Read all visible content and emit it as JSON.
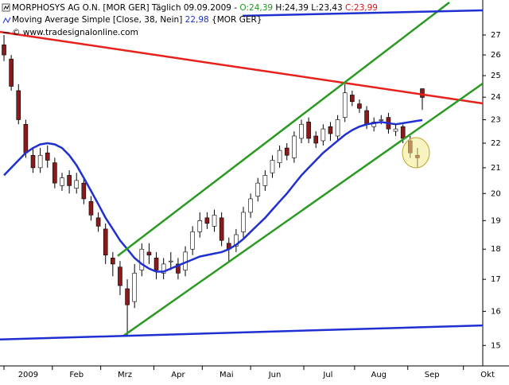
{
  "chart_data": {
    "type": "candlestick",
    "header": {
      "name": "MORPHOSYS AG O.N. [MOR GER]  Täglich 09.09.2009 - ",
      "open": "O:24,39",
      "mid": " H:24,39 L:23,43 ",
      "close": "C:23,99",
      "ma_label": "Moving Average Simple [Close, 38, Nein] ",
      "ma_value": "22,98",
      "ma_tail": " {MOR GER}",
      "source": "© www.tradesignalonline.com"
    },
    "x": [
      0,
      3,
      6,
      9,
      12,
      15,
      18,
      21,
      24,
      27,
      30,
      33,
      36,
      39,
      42,
      45,
      48,
      51,
      54,
      57,
      60,
      63,
      66,
      69,
      72,
      75,
      78,
      81,
      84,
      87,
      90,
      93,
      96,
      99,
      102,
      105,
      108,
      111,
      114,
      117,
      120,
      123,
      126,
      129,
      132,
      135,
      138,
      141,
      144,
      147,
      150,
      153,
      156,
      159,
      162,
      165,
      168,
      171,
      173
    ],
    "open": [
      26.5,
      25.8,
      24.3,
      22.8,
      21.5,
      21.0,
      21.6,
      21.2,
      20.3,
      20.7,
      20.2,
      20.4,
      19.7,
      19.1,
      18.7,
      17.7,
      17.4,
      16.7,
      16.3,
      17.3,
      17.9,
      17.7,
      17.2,
      17.6,
      17.5,
      17.3,
      18.0,
      18.6,
      19.1,
      18.8,
      19.1,
      18.2,
      18.1,
      18.6,
      19.3,
      19.9,
      20.3,
      20.8,
      21.2,
      21.8,
      21.4,
      22.2,
      22.9,
      22.3,
      22.1,
      22.7,
      22.3,
      23.1,
      24.1,
      23.7,
      23.4,
      22.7,
      23.0,
      23.1,
      22.5,
      22.7,
      22.1,
      21.5,
      24.39
    ],
    "high": [
      27.0,
      26.0,
      24.6,
      23.0,
      21.8,
      21.8,
      21.9,
      21.4,
      20.8,
      20.9,
      20.8,
      20.6,
      19.9,
      19.3,
      18.9,
      17.9,
      17.6,
      17.0,
      17.5,
      18.2,
      18.2,
      17.9,
      17.7,
      17.9,
      17.7,
      18.1,
      18.8,
      19.3,
      19.3,
      19.4,
      19.3,
      18.4,
      18.7,
      19.5,
      20.0,
      20.6,
      20.9,
      21.5,
      21.9,
      22.0,
      22.5,
      23.0,
      23.1,
      22.5,
      22.8,
      22.9,
      23.2,
      24.6,
      24.3,
      23.9,
      23.6,
      23.1,
      23.2,
      23.3,
      22.8,
      22.8,
      22.3,
      21.8,
      24.39
    ],
    "low": [
      25.7,
      24.3,
      22.8,
      21.4,
      20.8,
      20.8,
      21.0,
      20.2,
      20.1,
      20.0,
      20.0,
      19.6,
      19.0,
      18.6,
      17.5,
      17.1,
      16.5,
      15.3,
      16.1,
      17.1,
      17.5,
      17.0,
      17.0,
      17.3,
      17.0,
      17.1,
      17.8,
      18.4,
      18.7,
      18.6,
      18.1,
      17.6,
      17.9,
      18.4,
      19.1,
      19.7,
      20.1,
      20.6,
      21.0,
      21.3,
      21.2,
      22.0,
      22.0,
      21.8,
      21.9,
      22.1,
      22.1,
      22.9,
      23.6,
      23.3,
      22.6,
      22.5,
      22.8,
      22.4,
      22.3,
      22.0,
      21.4,
      21.0,
      23.43
    ],
    "close": [
      26.0,
      24.5,
      23.0,
      21.6,
      21.0,
      21.5,
      21.3,
      20.4,
      20.6,
      20.3,
      20.5,
      19.8,
      19.2,
      18.8,
      17.8,
      17.5,
      16.8,
      16.2,
      17.2,
      18.0,
      17.8,
      17.3,
      17.5,
      17.6,
      17.2,
      17.9,
      18.6,
      19.0,
      18.9,
      19.2,
      18.3,
      18.0,
      18.5,
      19.3,
      19.8,
      20.4,
      20.7,
      21.3,
      21.7,
      21.5,
      22.3,
      22.8,
      22.2,
      22.0,
      22.6,
      22.4,
      23.0,
      24.2,
      23.8,
      23.5,
      22.8,
      22.9,
      23.0,
      22.6,
      22.6,
      22.2,
      21.6,
      21.4,
      23.99
    ],
    "up_color": "#ffffff",
    "down_color": "#8b1a1a",
    "ma": {
      "color": "#1f2fd0",
      "values": [
        20.7,
        21.0,
        21.3,
        21.6,
        21.8,
        21.95,
        22.0,
        21.95,
        21.8,
        21.5,
        21.1,
        20.6,
        20.1,
        19.6,
        19.1,
        18.7,
        18.3,
        18.0,
        17.7,
        17.5,
        17.35,
        17.25,
        17.25,
        17.35,
        17.45,
        17.55,
        17.65,
        17.75,
        17.8,
        17.85,
        17.9,
        18.0,
        18.15,
        18.35,
        18.6,
        18.85,
        19.1,
        19.4,
        19.7,
        20.0,
        20.35,
        20.7,
        21.0,
        21.3,
        21.6,
        21.85,
        22.1,
        22.35,
        22.55,
        22.7,
        22.8,
        22.85,
        22.9,
        22.85,
        22.8,
        22.85,
        22.9,
        22.95,
        22.98
      ]
    },
    "trendlines": [
      {
        "color": "#e8201a",
        "x": [
          -1.65,
          198
        ],
        "values": [
          27.16,
          23.72
        ]
      },
      {
        "color": "#2a9a22",
        "x": [
          47,
          184.2
        ],
        "values": [
          17.77,
          28.72
        ]
      },
      {
        "color": "#2a9a22",
        "x": [
          49.3,
          198
        ],
        "values": [
          15.27,
          24.63
        ]
      },
      {
        "color": "#1f2fd0",
        "x": [
          98.7,
          198
        ],
        "values": [
          28.0,
          28.29
        ]
      },
      {
        "color": "#1f2fd0",
        "x": [
          -1.65,
          198
        ],
        "values": [
          15.17,
          15.58
        ]
      }
    ],
    "log_scale": true,
    "ylim": [
      14.43,
      28.85
    ],
    "yticks": [
      15,
      16,
      17,
      18,
      19,
      20,
      21,
      22,
      23,
      24,
      25,
      26,
      27
    ],
    "xlim": [
      -1.65,
      198
    ],
    "xticks": [
      {
        "value": 0,
        "label": "2009"
      },
      {
        "value": 20,
        "label": "Feb"
      },
      {
        "value": 40,
        "label": "Mrz"
      },
      {
        "value": 62,
        "label": "Apr"
      },
      {
        "value": 82,
        "label": "Mai"
      },
      {
        "value": 102,
        "label": "Jun"
      },
      {
        "value": 124,
        "label": "Jul"
      },
      {
        "value": 145,
        "label": "Aug"
      },
      {
        "value": 167,
        "label": "Sep"
      },
      {
        "value": 190,
        "label": "Okt"
      }
    ]
  }
}
